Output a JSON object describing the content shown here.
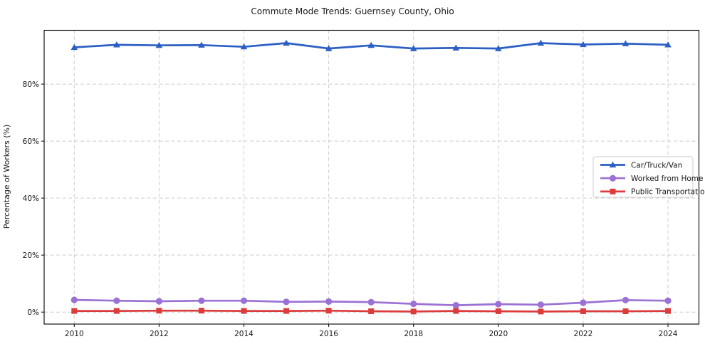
{
  "figure": {
    "title": "Commute Mode Trends: Guernsey County, Ohio",
    "ylabel": "Percentage of Workers (%)"
  },
  "colors": {
    "car": "#2b5fc4",
    "home": "#9a71d4",
    "transit": "#dd3c3c",
    "grid": "#cdcdcd",
    "spine": "#000000",
    "text": "#171717",
    "legend_border": "#cccccc",
    "legend_bg": "#ffffff"
  },
  "chart_data": {
    "type": "line",
    "title": "Commute Mode Trends: Guernsey County, Ohio",
    "xlabel": "",
    "ylabel": "Percentage of Workers (%)",
    "x": [
      2010,
      2011,
      2012,
      2013,
      2014,
      2015,
      2016,
      2017,
      2018,
      2019,
      2020,
      2021,
      2022,
      2023,
      2024
    ],
    "series": [
      {
        "name": "Car/Truck/Van",
        "color": "#2b5fc4",
        "marker": "triangle",
        "values": [
          92.9,
          93.8,
          93.6,
          93.7,
          93.1,
          94.4,
          92.5,
          93.6,
          92.5,
          92.7,
          92.5,
          94.4,
          93.9,
          94.2,
          93.8
        ]
      },
      {
        "name": "Worked from Home",
        "color": "#9a71d4",
        "marker": "circle",
        "values": [
          4.3,
          4.0,
          3.8,
          4.0,
          4.0,
          3.6,
          3.7,
          3.5,
          2.9,
          2.4,
          2.8,
          2.6,
          3.3,
          4.2,
          4.0
        ]
      },
      {
        "name": "Public Transportation",
        "color": "#dd3c3c",
        "marker": "square",
        "values": [
          0.4,
          0.4,
          0.5,
          0.5,
          0.4,
          0.4,
          0.5,
          0.3,
          0.2,
          0.4,
          0.3,
          0.2,
          0.3,
          0.3,
          0.4
        ]
      }
    ],
    "xtick_values": [
      2010,
      2012,
      2014,
      2016,
      2018,
      2020,
      2022,
      2024
    ],
    "xtick_labels": [
      "2010",
      "2012",
      "2014",
      "2016",
      "2018",
      "2020",
      "2022",
      "2024"
    ],
    "ytick_values": [
      0,
      20,
      40,
      60,
      80
    ],
    "ytick_labels": [
      "0%",
      "20%",
      "40%",
      "60%",
      "80%"
    ],
    "xlim": [
      2009.29,
      2024.73
    ],
    "ylim": [
      -4.2,
      98.9
    ],
    "grid": "dashed",
    "legend_position": "center-right"
  }
}
